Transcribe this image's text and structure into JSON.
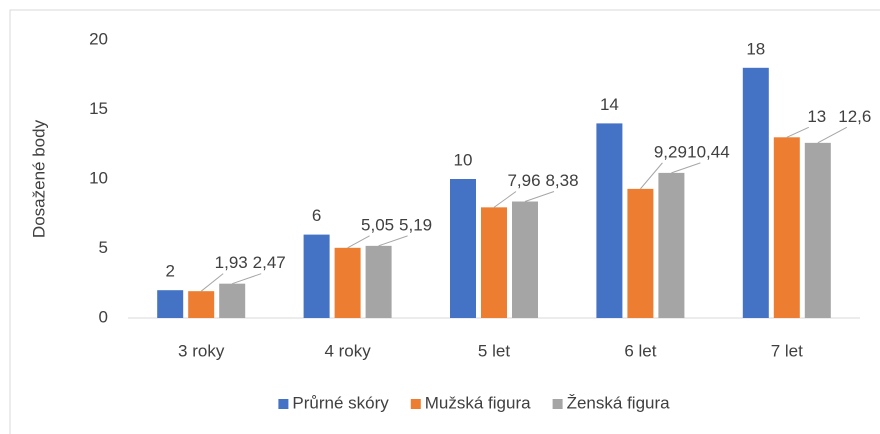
{
  "chart_data": {
    "type": "bar",
    "y_label": "Dosažené body",
    "categories": [
      "3 roky",
      "4 roky",
      "5 let",
      "6 let",
      "7 let"
    ],
    "series": [
      {
        "name": "Průrné skóry",
        "color": "#4472c4",
        "values": [
          2,
          6,
          10,
          14,
          18
        ],
        "value_labels": [
          "2",
          "6",
          "10",
          "14",
          "18"
        ]
      },
      {
        "name": "Mužská figura",
        "color": "#ed7d31",
        "values": [
          1.93,
          5.05,
          7.96,
          9.29,
          13
        ],
        "value_labels": [
          "1,93",
          "5,05",
          "7,96",
          "9,29",
          "13"
        ]
      },
      {
        "name": "Ženská figura",
        "color": "#a5a5a5",
        "values": [
          2.47,
          5.19,
          8.38,
          10.44,
          12.6
        ],
        "value_labels": [
          "2,47",
          "5,19",
          "8,38",
          "10,44",
          "12,6"
        ]
      }
    ],
    "ylim": [
      0,
      20
    ],
    "yticks": [
      0,
      5,
      10,
      15,
      20
    ],
    "grid": false,
    "legend": "bottom"
  }
}
